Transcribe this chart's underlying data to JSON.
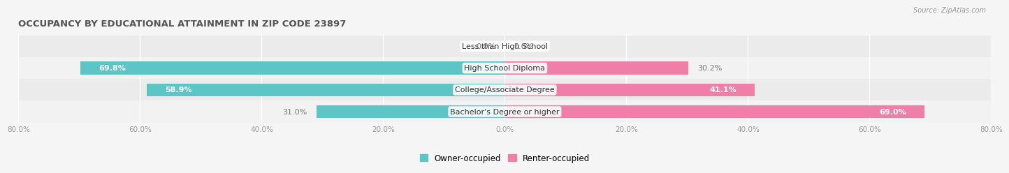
{
  "title": "OCCUPANCY BY EDUCATIONAL ATTAINMENT IN ZIP CODE 23897",
  "source": "Source: ZipAtlas.com",
  "categories": [
    "Less than High School",
    "High School Diploma",
    "College/Associate Degree",
    "Bachelor's Degree or higher"
  ],
  "owner_values": [
    0.0,
    69.8,
    58.9,
    31.0
  ],
  "renter_values": [
    0.0,
    30.2,
    41.1,
    69.0
  ],
  "owner_color": "#5CC5C5",
  "renter_color": "#F07FA8",
  "xlim": [
    -80,
    80
  ],
  "xticks": [
    -80,
    -60,
    -40,
    -20,
    0,
    20,
    40,
    60,
    80
  ],
  "xtick_labels": [
    "80.0%",
    "60.0%",
    "40.0%",
    "20.0%",
    "0.0%",
    "20.0%",
    "40.0%",
    "60.0%",
    "80.0%"
  ],
  "bar_height": 0.58,
  "background_color": "#f5f5f5",
  "label_fontsize": 8,
  "title_fontsize": 9.5,
  "value_fontsize": 8
}
